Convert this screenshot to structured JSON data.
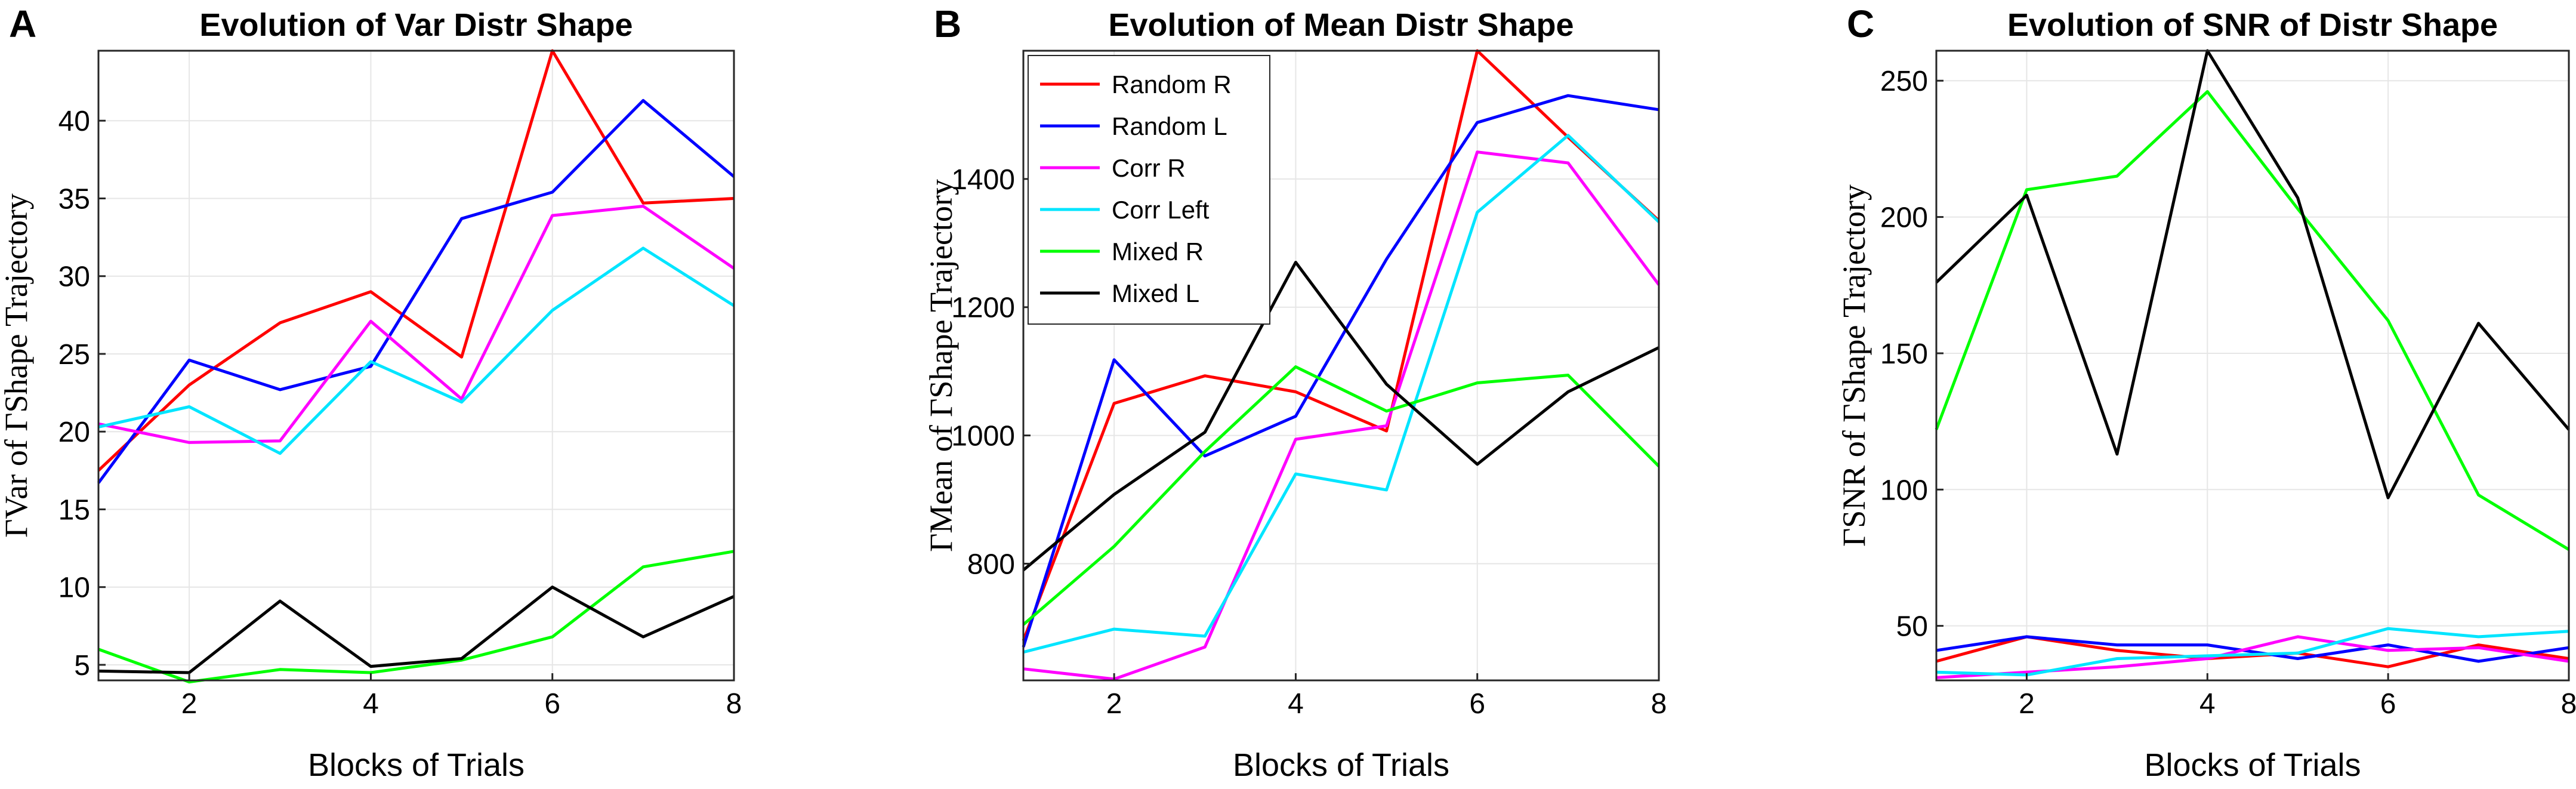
{
  "chart_data": [
    {
      "panel": "A",
      "type": "line",
      "title": "Evolution of Var Distr Shape",
      "xlabel": "Blocks of Trials",
      "ylabel": "ΓVar of ΓShape Trajectory",
      "xlim": [
        1,
        8
      ],
      "ylim": [
        4,
        44.5
      ],
      "xticks": [
        2,
        4,
        6,
        8
      ],
      "yticks": [
        5,
        10,
        15,
        20,
        25,
        30,
        35,
        40
      ],
      "x": [
        1,
        2,
        3,
        4,
        5,
        6,
        7,
        8
      ],
      "series": [
        {
          "name": "Random R",
          "color": "#ff0000",
          "values": [
            17.5,
            23.0,
            27.0,
            29.0,
            24.8,
            44.5,
            34.7,
            35.0
          ]
        },
        {
          "name": "Random L",
          "color": "#0000ff",
          "values": [
            16.7,
            24.6,
            22.7,
            24.2,
            33.7,
            35.4,
            41.3,
            36.4
          ]
        },
        {
          "name": "Corr R",
          "color": "#ff00ff",
          "values": [
            20.5,
            19.3,
            19.4,
            27.1,
            22.1,
            33.9,
            34.5,
            30.5
          ]
        },
        {
          "name": "Corr Left",
          "color": "#00e5ff",
          "values": [
            20.3,
            21.6,
            18.6,
            24.5,
            21.9,
            27.8,
            31.8,
            28.1
          ]
        },
        {
          "name": "Mixed R",
          "color": "#00ff00",
          "values": [
            6.0,
            3.9,
            4.7,
            4.5,
            5.3,
            6.8,
            11.3,
            12.3
          ]
        },
        {
          "name": "Mixed L",
          "color": "#000000",
          "values": [
            4.6,
            4.5,
            9.1,
            4.9,
            5.4,
            10.0,
            6.8,
            9.4
          ]
        }
      ]
    },
    {
      "panel": "B",
      "type": "line",
      "title": "Evolution of Mean Distr Shape",
      "xlabel": "Blocks of Trials",
      "ylabel": "ΓMean of ΓShape Trajectory",
      "xlim": [
        1,
        8
      ],
      "ylim": [
        618,
        1600
      ],
      "xticks": [
        2,
        4,
        6,
        8
      ],
      "yticks": [
        800,
        1000,
        1200,
        1400
      ],
      "x": [
        1,
        2,
        3,
        4,
        5,
        6,
        7,
        8
      ],
      "legend_position": "top-left",
      "series": [
        {
          "name": "Random R",
          "color": "#ff0000",
          "values": [
            680,
            1050,
            1093,
            1068,
            1007,
            1600,
            1465,
            1335
          ]
        },
        {
          "name": "Random L",
          "color": "#0000ff",
          "values": [
            670,
            1118,
            968,
            1030,
            1275,
            1488,
            1530,
            1508
          ]
        },
        {
          "name": "Corr R",
          "color": "#ff00ff",
          "values": [
            636,
            620,
            670,
            994,
            1015,
            1442,
            1425,
            1235
          ]
        },
        {
          "name": "Corr Left",
          "color": "#00e5ff",
          "values": [
            662,
            698,
            687,
            940,
            915,
            1348,
            1468,
            1333
          ]
        },
        {
          "name": "Mixed R",
          "color": "#00ff00",
          "values": [
            705,
            827,
            975,
            1107,
            1038,
            1082,
            1094,
            952
          ]
        },
        {
          "name": "Mixed L",
          "color": "#000000",
          "values": [
            790,
            908,
            1005,
            1270,
            1080,
            955,
            1068,
            1137
          ]
        }
      ]
    },
    {
      "panel": "C",
      "type": "line",
      "title": "Evolution of SNR of Distr Shape",
      "xlabel": "Blocks of Trials",
      "ylabel": "ΓSNR of ΓShape Trajectory",
      "xlim": [
        1,
        8
      ],
      "ylim": [
        30,
        261
      ],
      "xticks": [
        2,
        4,
        6,
        8
      ],
      "yticks": [
        50,
        100,
        150,
        200,
        250
      ],
      "x": [
        1,
        2,
        3,
        4,
        5,
        6,
        7,
        8
      ],
      "series": [
        {
          "name": "Random R",
          "color": "#ff0000",
          "values": [
            37,
            46,
            41,
            38,
            40,
            35,
            43,
            38
          ]
        },
        {
          "name": "Random L",
          "color": "#0000ff",
          "values": [
            41,
            46,
            43,
            43,
            38,
            43,
            37,
            42
          ]
        },
        {
          "name": "Corr R",
          "color": "#ff00ff",
          "values": [
            31,
            33,
            35,
            38,
            46,
            41,
            42,
            37
          ]
        },
        {
          "name": "Corr Left",
          "color": "#00e5ff",
          "values": [
            33,
            32,
            38,
            39,
            40,
            49,
            46,
            48
          ]
        },
        {
          "name": "Mixed R",
          "color": "#00ff00",
          "values": [
            122,
            210,
            215,
            246,
            203,
            162,
            98,
            78
          ]
        },
        {
          "name": "Mixed L",
          "color": "#000000",
          "values": [
            176,
            208,
            113,
            261,
            207,
            97,
            161,
            122
          ]
        }
      ]
    }
  ]
}
